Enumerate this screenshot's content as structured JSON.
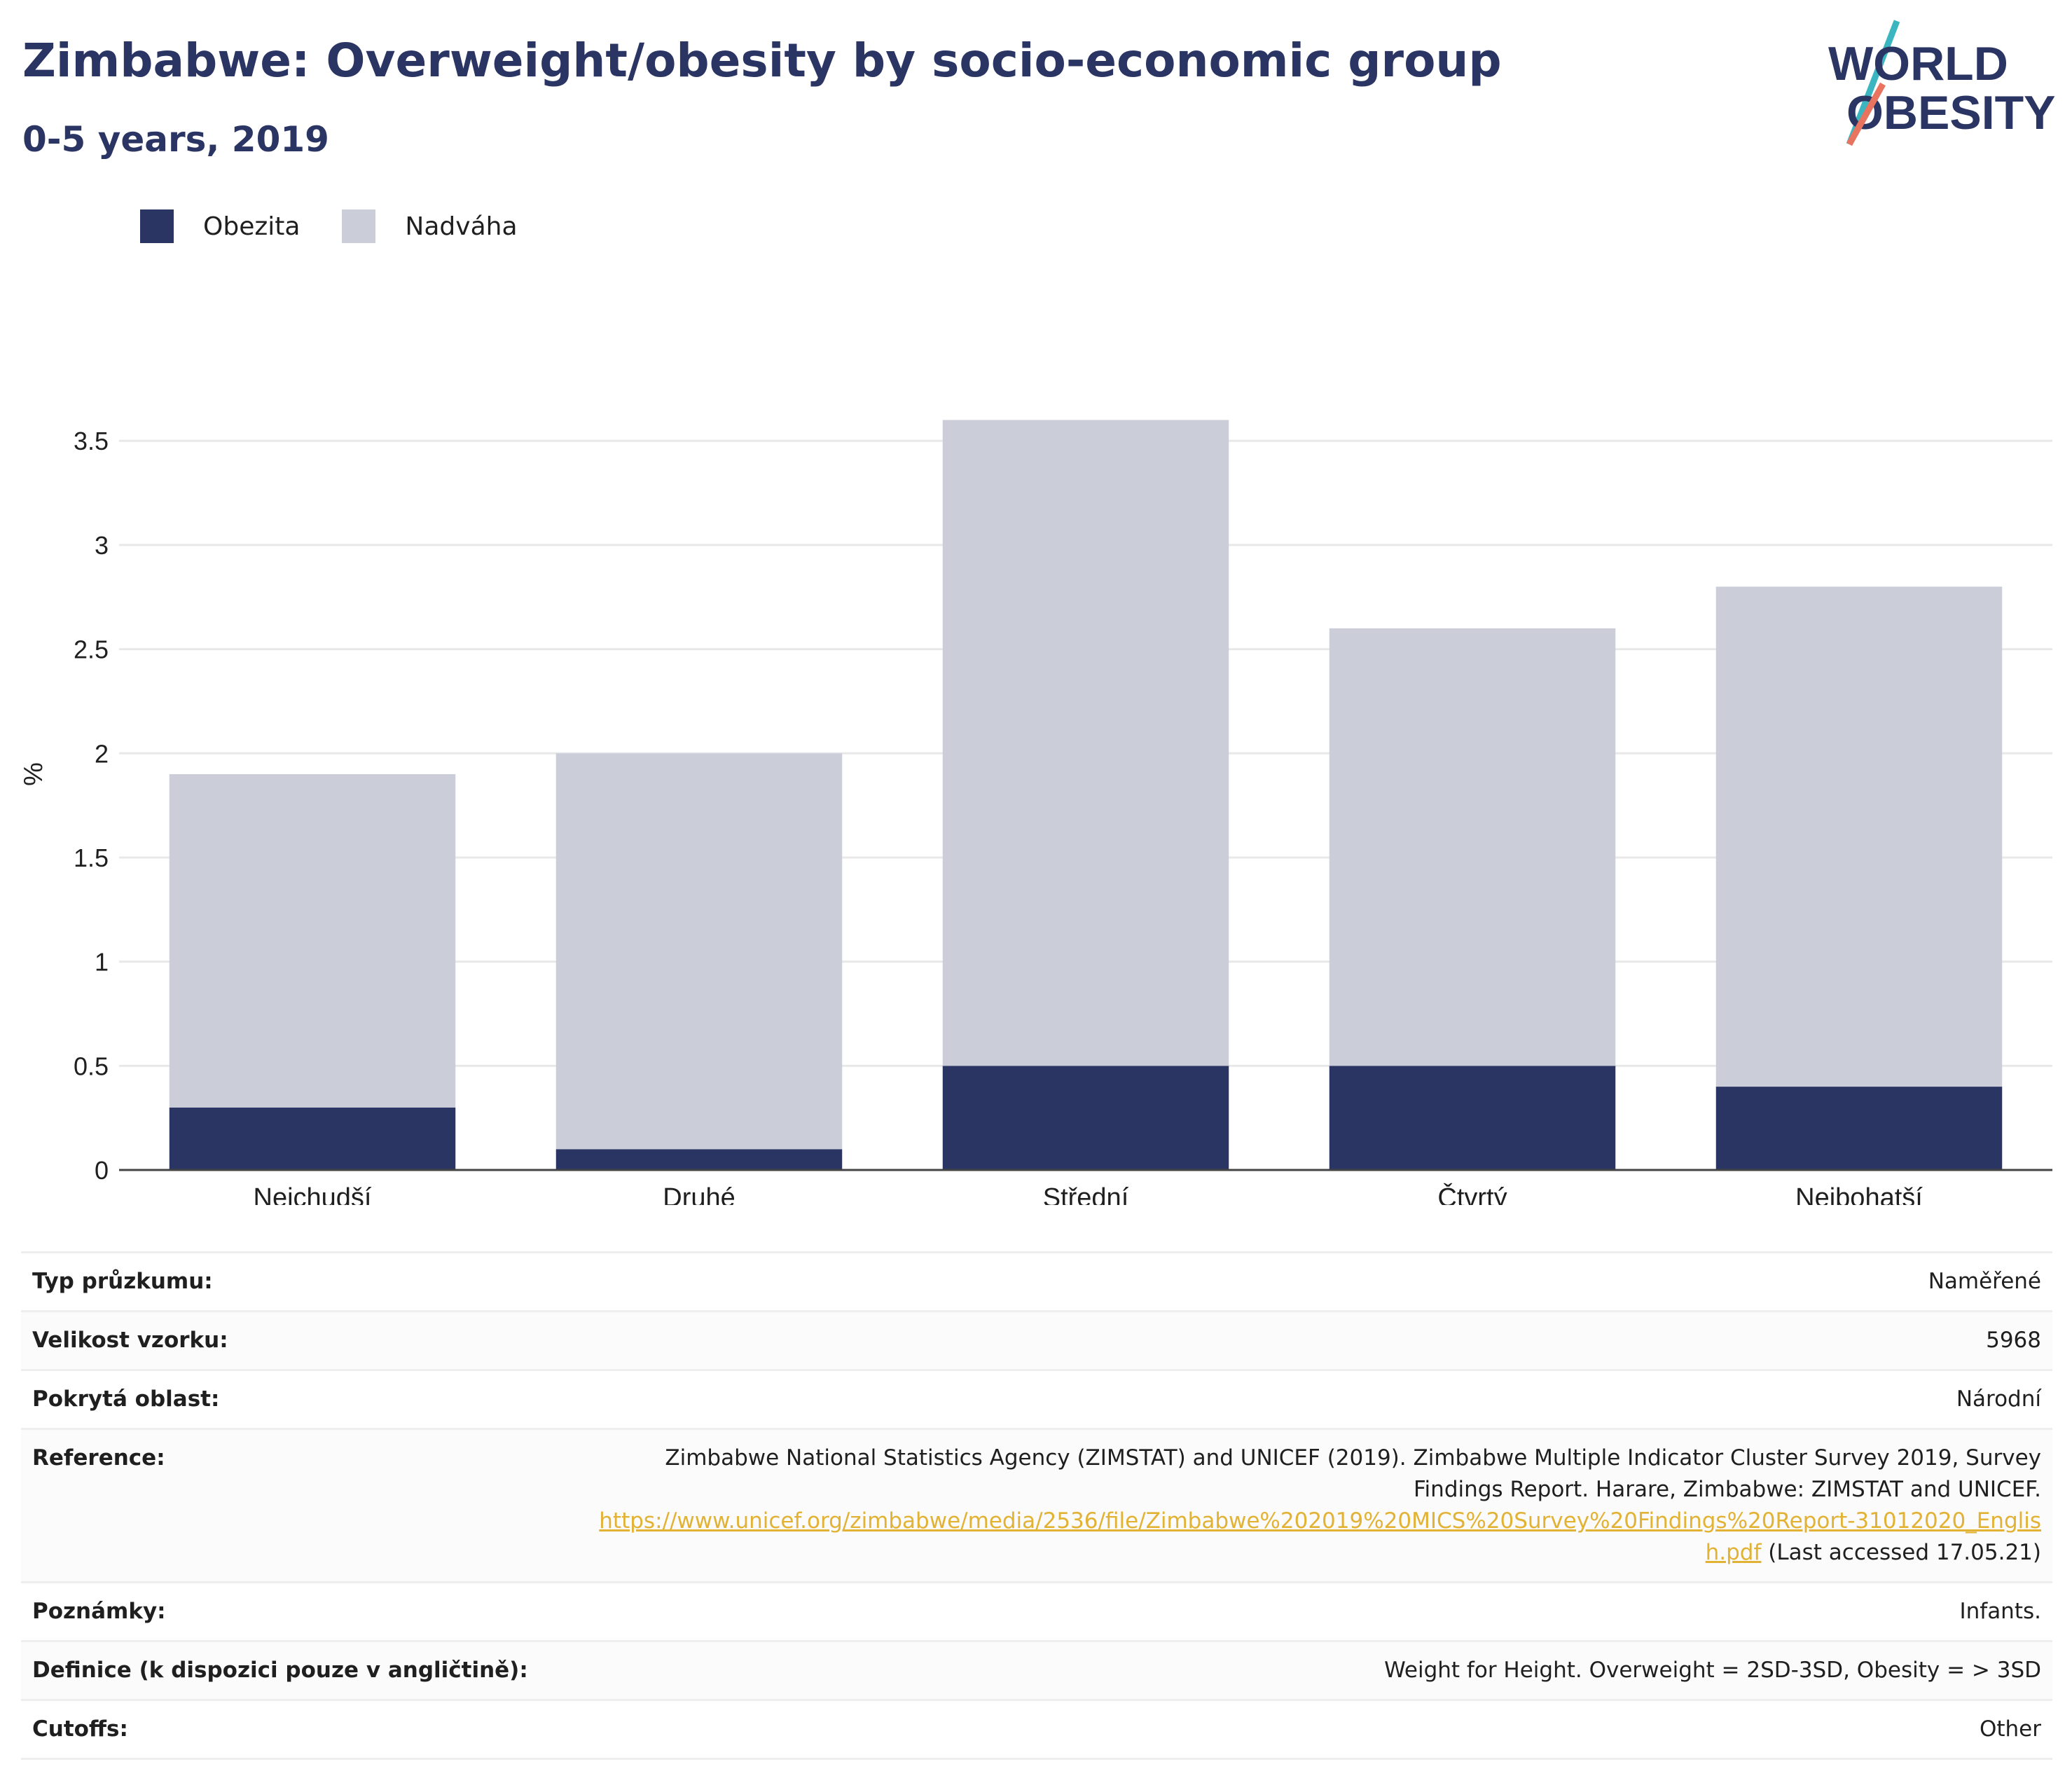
{
  "header": {
    "title": "Zimbabwe: Overweight/obesity by socio-economic group",
    "subtitle": "0-5 years, 2019",
    "logo_line1": "WORLD",
    "logo_line2": "OBESITY"
  },
  "colors": {
    "obesity": "#2b3564",
    "overweight": "#cbcdd8",
    "title": "#2b3564",
    "link": "#e2b235",
    "logo_teal": "#3bb5c0",
    "logo_coral": "#e8735f"
  },
  "legend": [
    {
      "label": "Obezita",
      "color": "#2b3564"
    },
    {
      "label": "Nadváha",
      "color": "#cbcdd8"
    }
  ],
  "chart_data": {
    "type": "bar",
    "stacked": true,
    "categories": [
      "Nejchudší",
      "Druhé",
      "Střední",
      "Čtvrtý",
      "Nejbohatší"
    ],
    "series": [
      {
        "name": "Obezita",
        "values": [
          0.3,
          0.1,
          0.5,
          0.5,
          0.4
        ]
      },
      {
        "name": "Nadváha",
        "values": [
          1.6,
          1.9,
          3.1,
          2.1,
          2.4
        ]
      }
    ],
    "ylabel": "%",
    "ylim": [
      0,
      3.8
    ],
    "yticks": [
      0,
      0.5,
      1,
      1.5,
      2,
      2.5,
      3,
      3.5
    ],
    "ytick_labels": [
      "0",
      "0.5",
      "1",
      "1.5",
      "2",
      "2.5",
      "3",
      "3.5"
    ],
    "grid": true,
    "legend_position": "top-left"
  },
  "meta": {
    "survey_type": {
      "label": "Typ průzkumu:",
      "value": "Naměřené"
    },
    "sample_size": {
      "label": "Velikost vzorku:",
      "value": "5968"
    },
    "area": {
      "label": "Pokrytá oblast:",
      "value": "Národní"
    },
    "reference": {
      "label": "Reference:",
      "text": "Zimbabwe National Statistics Agency (ZIMSTAT) and UNICEF (2019). Zimbabwe Multiple Indicator Cluster Survey 2019, Survey Findings Report. Harare, Zimbabwe: ZIMSTAT and UNICEF.",
      "url": "https://www.unicef.org/zimbabwe/media/2536/file/Zimbabwe%202019%20MICS%20Survey%20Findings%20Report-31012020_English.pdf",
      "accessed": "(Last accessed 17.05.21)"
    },
    "notes": {
      "label": "Poznámky:",
      "value": "Infants."
    },
    "definition": {
      "label": "Definice (k dispozici pouze v angličtině):",
      "value": "Weight for Height. Overweight = 2SD-3SD, Obesity = > 3SD"
    },
    "cutoffs": {
      "label": "Cutoffs:",
      "value": "Other"
    }
  }
}
